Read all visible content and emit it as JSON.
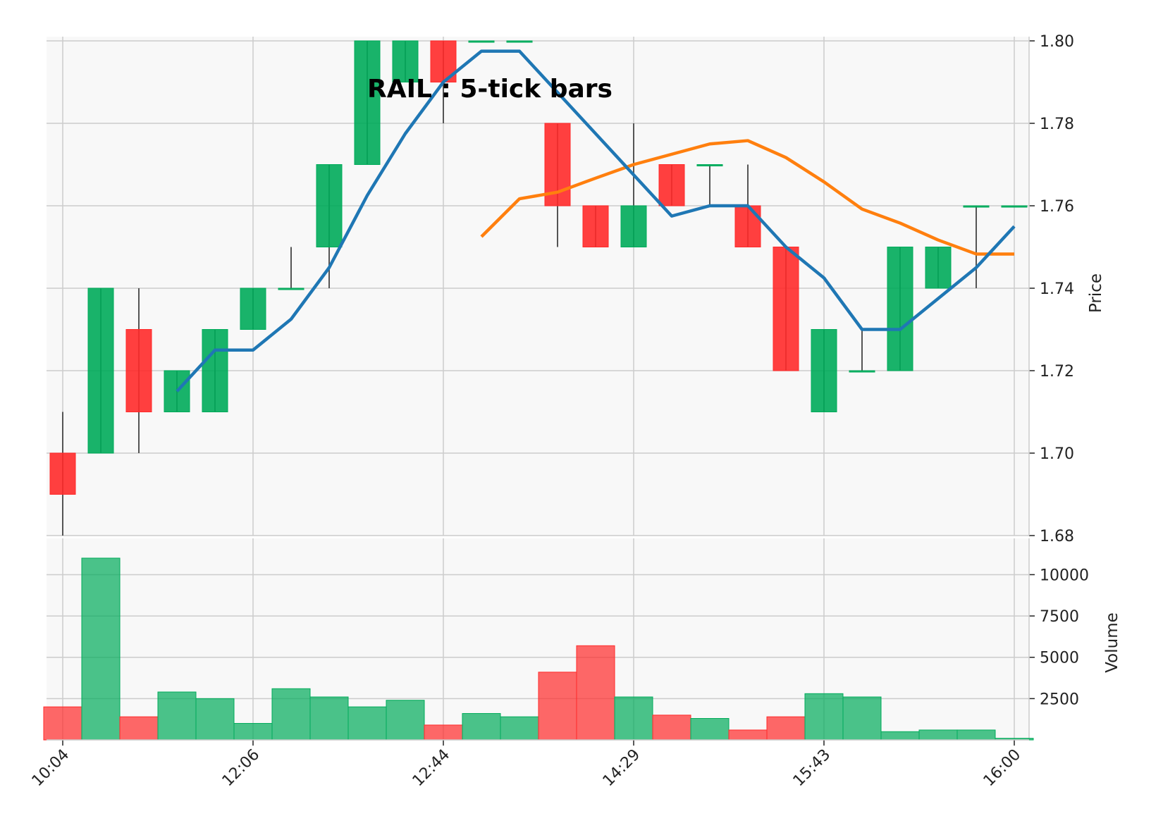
{
  "chart_data": {
    "type": "candlestick",
    "title": "RAIL : 5-tick bars",
    "ylabel_price": "Price",
    "ylabel_volume": "Volume",
    "price_ylim": [
      1.68,
      1.8
    ],
    "price_ticks": [
      "1.68",
      "1.70",
      "1.72",
      "1.74",
      "1.76",
      "1.78",
      "1.80"
    ],
    "volume_ylim": [
      0,
      11000
    ],
    "volume_ticks": [
      "2500",
      "5000",
      "7500",
      "10000"
    ],
    "x_tick_labels": [
      {
        "index": 0,
        "label": "10:04"
      },
      {
        "index": 5,
        "label": "12:06"
      },
      {
        "index": 10,
        "label": "12:44"
      },
      {
        "index": 15,
        "label": "14:29"
      },
      {
        "index": 20,
        "label": "15:43"
      },
      {
        "index": 25,
        "label": "16:00"
      }
    ],
    "grid": true,
    "colors": {
      "up": "#00ab5a",
      "down": "#ff2a2a",
      "wick": "#555555",
      "ma_short": "#1f77b4",
      "ma_long": "#ff7f0e",
      "panel_bg": "#f8f8f8",
      "grid": "#cccccc"
    },
    "bars": [
      {
        "open": 1.7,
        "high": 1.71,
        "low": 1.68,
        "close": 1.69,
        "volume": 2000
      },
      {
        "open": 1.7,
        "high": 1.74,
        "low": 1.7,
        "close": 1.74,
        "volume": 11000
      },
      {
        "open": 1.73,
        "high": 1.74,
        "low": 1.7,
        "close": 1.71,
        "volume": 1400
      },
      {
        "open": 1.71,
        "high": 1.72,
        "low": 1.71,
        "close": 1.72,
        "volume": 2900
      },
      {
        "open": 1.71,
        "high": 1.73,
        "low": 1.71,
        "close": 1.73,
        "volume": 2500
      },
      {
        "open": 1.73,
        "high": 1.74,
        "low": 1.73,
        "close": 1.74,
        "volume": 1000
      },
      {
        "open": 1.74,
        "high": 1.75,
        "low": 1.74,
        "close": 1.74,
        "volume": 3100
      },
      {
        "open": 1.75,
        "high": 1.77,
        "low": 1.74,
        "close": 1.77,
        "volume": 2600
      },
      {
        "open": 1.77,
        "high": 1.8,
        "low": 1.77,
        "close": 1.8,
        "volume": 2000
      },
      {
        "open": 1.79,
        "high": 1.8,
        "low": 1.79,
        "close": 1.8,
        "volume": 2400
      },
      {
        "open": 1.8,
        "high": 1.8,
        "low": 1.78,
        "close": 1.79,
        "volume": 900
      },
      {
        "open": 1.8,
        "high": 1.8,
        "low": 1.8,
        "close": 1.8,
        "volume": 1600
      },
      {
        "open": 1.8,
        "high": 1.8,
        "low": 1.8,
        "close": 1.8,
        "volume": 1400
      },
      {
        "open": 1.78,
        "high": 1.78,
        "low": 1.75,
        "close": 1.76,
        "volume": 4100
      },
      {
        "open": 1.76,
        "high": 1.76,
        "low": 1.75,
        "close": 1.75,
        "volume": 5700
      },
      {
        "open": 1.75,
        "high": 1.78,
        "low": 1.75,
        "close": 1.76,
        "volume": 2600
      },
      {
        "open": 1.77,
        "high": 1.77,
        "low": 1.76,
        "close": 1.76,
        "volume": 1500
      },
      {
        "open": 1.77,
        "high": 1.77,
        "low": 1.76,
        "close": 1.77,
        "volume": 1300
      },
      {
        "open": 1.76,
        "high": 1.77,
        "low": 1.75,
        "close": 1.75,
        "volume": 600
      },
      {
        "open": 1.75,
        "high": 1.75,
        "low": 1.72,
        "close": 1.72,
        "volume": 1400
      },
      {
        "open": 1.71,
        "high": 1.73,
        "low": 1.71,
        "close": 1.73,
        "volume": 2800
      },
      {
        "open": 1.72,
        "high": 1.73,
        "low": 1.72,
        "close": 1.72,
        "volume": 2600
      },
      {
        "open": 1.72,
        "high": 1.75,
        "low": 1.72,
        "close": 1.75,
        "volume": 500
      },
      {
        "open": 1.74,
        "high": 1.75,
        "low": 1.74,
        "close": 1.75,
        "volume": 600
      },
      {
        "open": 1.76,
        "high": 1.76,
        "low": 1.74,
        "close": 1.76,
        "volume": 600
      },
      {
        "open": 1.76,
        "high": 1.76,
        "low": 1.76,
        "close": 1.76,
        "volume": 100
      }
    ],
    "ma_short": [
      null,
      null,
      null,
      1.715,
      1.725,
      1.725,
      1.7325,
      1.745,
      1.7625,
      1.7775,
      1.79,
      1.7975,
      1.7975,
      1.7875,
      1.7775,
      1.7675,
      1.7575,
      1.76,
      1.76,
      1.75,
      1.7425,
      1.73,
      1.73,
      1.7375,
      1.745,
      1.755
    ],
    "ma_long": [
      null,
      null,
      null,
      null,
      null,
      null,
      null,
      null,
      null,
      null,
      null,
      1.7525,
      1.7617,
      1.7633,
      1.7667,
      1.77,
      1.7725,
      1.775,
      1.7758,
      1.7717,
      1.7658,
      1.7592,
      1.7558,
      1.7517,
      1.7483,
      1.7483
    ]
  }
}
